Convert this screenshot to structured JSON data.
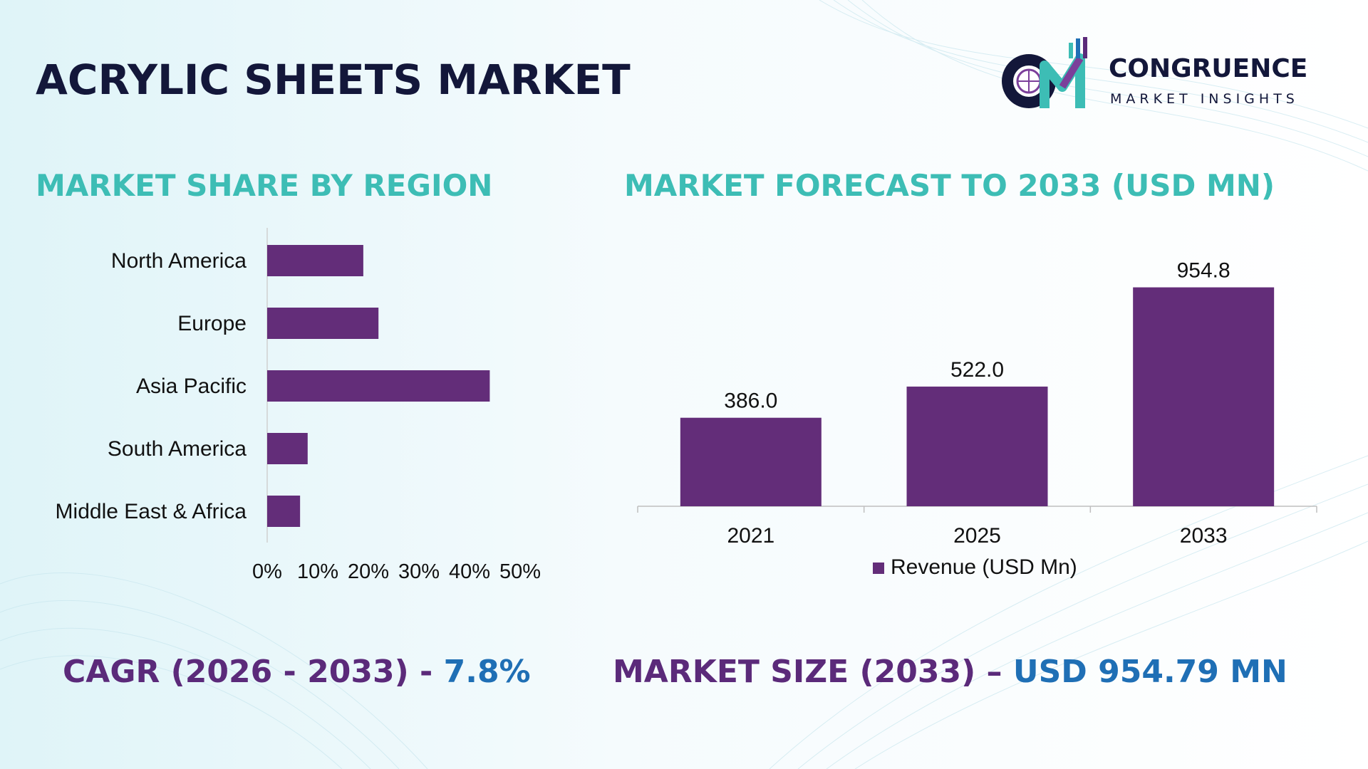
{
  "title": "ACRYLIC SHEETS MARKET",
  "logo": {
    "name": "CONGRUENCE",
    "tagline": "MARKET INSIGHTS"
  },
  "colors": {
    "bar": "#632d79",
    "title": "#13173a",
    "section_title": "#3dbdb5",
    "stat_label": "#5b2a7a",
    "stat_value": "#1f6fb5"
  },
  "share_chart": {
    "title": "MARKET SHARE BY REGION"
  },
  "forecast_chart": {
    "title": "MARKET FORECAST TO 2033 (USD MN)"
  },
  "stats": {
    "cagr_label": "CAGR (2026 - 2033) - ",
    "cagr_value": "7.8%",
    "size_label": "MARKET SIZE (2033) – ",
    "size_value": "USD 954.79 MN"
  },
  "chart_data": [
    {
      "type": "bar",
      "orientation": "horizontal",
      "categories": [
        "North America",
        "Europe",
        "Asia Pacific",
        "South America",
        "Middle East & Africa"
      ],
      "values": [
        19,
        22,
        44,
        8,
        6.5
      ],
      "xlim": [
        0,
        50
      ],
      "tick_labels": [
        "0%",
        "10%",
        "20%",
        "30%",
        "40%",
        "50%"
      ],
      "grid": false
    },
    {
      "type": "bar",
      "categories": [
        "2021",
        "2025",
        "2033"
      ],
      "series": [
        {
          "name": "Revenue (USD Mn)",
          "values": [
            386.0,
            522.0,
            954.8
          ]
        }
      ],
      "data_labels": [
        "386.0",
        "522.0",
        "954.8"
      ],
      "ylim": [
        0,
        1000
      ],
      "legend": "bottom",
      "grid": false
    }
  ]
}
